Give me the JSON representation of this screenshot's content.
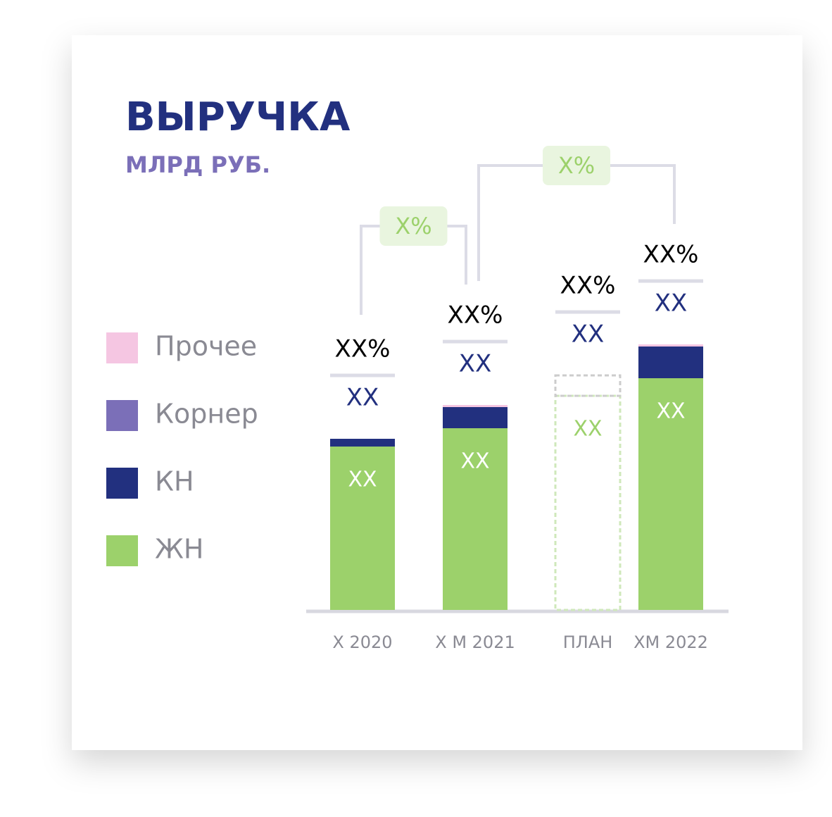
{
  "chart_data": {
    "type": "stacked_bar",
    "title": "ВЫРУЧКА",
    "subtitle": "МЛРД РУБ.",
    "categories": [
      "Х 2020",
      "Х М 2021",
      "ПЛАН",
      "ХМ 2022"
    ],
    "dashed": [
      false,
      false,
      true,
      false
    ],
    "series": [
      {
        "name": "ЖН",
        "color": "#9cd16b",
        "values": [
          232,
          258,
          304,
          329
        ],
        "value_labels": [
          "XX",
          "XX",
          "XX",
          "XX"
        ]
      },
      {
        "name": "КН",
        "color": "#22307f",
        "values": [
          11,
          30,
          29,
          45
        ]
      },
      {
        "name": "Корнер",
        "color": "#7b6fb8",
        "values": [
          0,
          0,
          0,
          0
        ]
      },
      {
        "name": "Прочее",
        "color": "#f5c6e2",
        "values": [
          0,
          3,
          0,
          3
        ]
      }
    ],
    "total_labels": [
      "XX",
      "XX",
      "XX",
      "XX"
    ],
    "share_labels": [
      "XX%",
      "XX%",
      "XX%",
      "XX%"
    ],
    "brackets": [
      {
        "label": "X%",
        "from": 0,
        "to": 1
      },
      {
        "label": "X%",
        "from": 1,
        "to": 3
      }
    ],
    "ylim": [
      0,
      400
    ]
  }
}
